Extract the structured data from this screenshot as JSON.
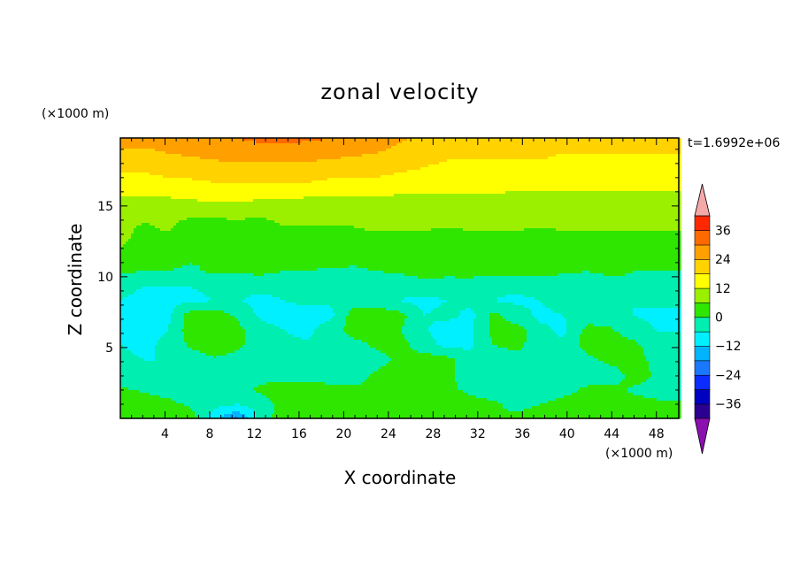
{
  "chart_data": {
    "type": "heatmap",
    "title": "zonal velocity",
    "xlabel": "X coordinate",
    "ylabel": "Z coordinate",
    "x_unit": "(×1000 m)",
    "y_unit": "(×1000 m)",
    "time_label": "t=1.6992e+06",
    "xlim": [
      0,
      50
    ],
    "ylim": [
      0,
      19.8
    ],
    "x_ticks": [
      "4",
      "8",
      "12",
      "16",
      "20",
      "24",
      "28",
      "32",
      "36",
      "40",
      "44",
      "48"
    ],
    "y_ticks": [
      "5",
      "10",
      "15"
    ],
    "colorbar": {
      "levels": [
        -42,
        -36,
        -30,
        -24,
        -18,
        -12,
        -6,
        0,
        6,
        12,
        18,
        24,
        30,
        36,
        42
      ],
      "tick_labels": [
        "36",
        "24",
        "12",
        "0",
        "-12",
        "-24",
        "-36"
      ],
      "colors": [
        "#7a00b5",
        "#2a0090",
        "#0000c0",
        "#0a2cff",
        "#1a78ff",
        "#00b4ff",
        "#00f0ff",
        "#00eeb0",
        "#2ee600",
        "#9bf000",
        "#ffff00",
        "#ffd200",
        "#ffa000",
        "#ff6a00",
        "#ff2800",
        "#f5a8a8"
      ],
      "over_color": "#f5a8a8",
      "under_color": "#8c10b0"
    },
    "z": [
      [
        26,
        26,
        26,
        27,
        28,
        30,
        31,
        31,
        31,
        30,
        29,
        28,
        25,
        22,
        21,
        21,
        21,
        21,
        20,
        20,
        20,
        20,
        20,
        20,
        19
      ],
      [
        23,
        23,
        24,
        25,
        26,
        27,
        28,
        28,
        27,
        26,
        25,
        24,
        22,
        20,
        19,
        19,
        19,
        19,
        19,
        18,
        18,
        18,
        18,
        18,
        18
      ],
      [
        19,
        19,
        20,
        21,
        22,
        22,
        22,
        22,
        22,
        21,
        21,
        20,
        19,
        18,
        17,
        17,
        17,
        17,
        17,
        16,
        16,
        16,
        16,
        16,
        16
      ],
      [
        16,
        16,
        17,
        17,
        18,
        18,
        18,
        18,
        18,
        17,
        17,
        17,
        16,
        15,
        15,
        15,
        15,
        15,
        14,
        14,
        14,
        14,
        14,
        14,
        14
      ],
      [
        12,
        12,
        12,
        13,
        13,
        13,
        13,
        13,
        12,
        12,
        12,
        12,
        11,
        11,
        11,
        11,
        11,
        10,
        10,
        10,
        10,
        10,
        10,
        10,
        10
      ],
      [
        9,
        9,
        8,
        8,
        9,
        9,
        8,
        8,
        8,
        8,
        8,
        8,
        8,
        8,
        8,
        9,
        10,
        11,
        11,
        10,
        8,
        8,
        8,
        8,
        8
      ],
      [
        8,
        5,
        7,
        3,
        2,
        3,
        3,
        6,
        6,
        6,
        6,
        7,
        7,
        7,
        6,
        7,
        7,
        7,
        6,
        7,
        7,
        7,
        7,
        7,
        7
      ],
      [
        7,
        4,
        4,
        4,
        4,
        4,
        2,
        2,
        5,
        4,
        4,
        4,
        4,
        3,
        3,
        3,
        3,
        3,
        3,
        3,
        3,
        3,
        3,
        3,
        2
      ],
      [
        4,
        3,
        2,
        1,
        0,
        2,
        3,
        3,
        3,
        3,
        2,
        3,
        3,
        3,
        3,
        3,
        2,
        3,
        3,
        3,
        3,
        2,
        2,
        2,
        2
      ],
      [
        1,
        0,
        0,
        -1,
        1,
        1,
        1,
        0,
        0,
        -1,
        -1,
        0,
        1,
        2,
        2,
        3,
        2,
        2,
        2,
        1,
        0,
        1,
        0,
        0,
        0
      ],
      [
        -4,
        -6,
        -6,
        -6,
        -5,
        -4,
        -3,
        -3,
        -2,
        -3,
        -4,
        -5,
        -4,
        -2,
        -3,
        -4,
        -5,
        -5,
        -4,
        -4,
        -3,
        -2,
        -1,
        -2,
        -2
      ],
      [
        -6,
        -8,
        -8,
        -7,
        -6,
        -5,
        -9,
        -6,
        -5,
        -5,
        -3,
        -3,
        -6,
        -8,
        -6,
        -4,
        -6,
        -7,
        -6,
        -4,
        -4,
        -5,
        -6,
        -5,
        -5
      ],
      [
        -8,
        -9,
        -8,
        3,
        4,
        -1,
        -7,
        -8,
        -8,
        -8,
        3,
        4,
        2,
        -6,
        -4,
        -8,
        2,
        -4,
        -7,
        -6,
        -3,
        -3,
        -6,
        -7,
        -7
      ],
      [
        -7,
        -8,
        -6,
        3,
        5,
        2,
        -4,
        -6,
        -8,
        -2,
        2,
        4,
        0,
        -5,
        -10,
        -7,
        2,
        3,
        -5,
        -7,
        2,
        1,
        -4,
        -6,
        -6
      ],
      [
        -6,
        -7,
        -5,
        1,
        4,
        1,
        -2,
        -4,
        -5,
        -3,
        -2,
        1,
        2,
        -3,
        -8,
        -7,
        0,
        2,
        -4,
        -5,
        3,
        4,
        2,
        -5,
        -5
      ],
      [
        -5,
        -6,
        -6,
        -4,
        -1,
        -2,
        -3,
        -3,
        -4,
        -4,
        -3,
        -2,
        1,
        3,
        2,
        -4,
        -5,
        -3,
        -4,
        -5,
        -2,
        2,
        4,
        -3,
        -4
      ],
      [
        -4,
        -5,
        -5,
        -4,
        -3,
        -3,
        -2,
        -4,
        -5,
        -5,
        -3,
        1,
        4,
        4,
        1,
        -2,
        -5,
        -4,
        -3,
        -3,
        -3,
        -4,
        3,
        -1,
        -3
      ],
      [
        1,
        -1,
        -3,
        -4,
        -3,
        -2,
        1,
        4,
        6,
        3,
        1,
        2,
        3,
        3,
        1,
        -1,
        -3,
        -5,
        -4,
        -2,
        1,
        2,
        -1,
        -2,
        -2
      ],
      [
        3,
        4,
        2,
        -1,
        -4,
        -6,
        -3,
        2,
        5,
        4,
        2,
        1,
        2,
        3,
        2,
        2,
        1,
        -2,
        0,
        2,
        3,
        3,
        2,
        1,
        1
      ],
      [
        4,
        5,
        5,
        4,
        -10,
        -20,
        -3,
        3,
        3,
        2,
        1,
        2,
        4,
        2,
        0,
        1,
        0,
        2,
        4,
        5,
        4,
        3,
        3,
        2,
        2
      ]
    ]
  }
}
